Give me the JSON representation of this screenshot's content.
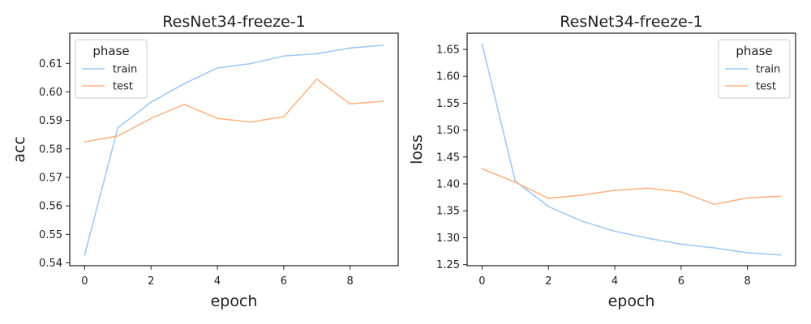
{
  "chart_data": [
    {
      "type": "line",
      "title": "ResNet34-freeze-1",
      "xlabel": "epoch",
      "ylabel": "acc",
      "x": [
        0,
        1,
        2,
        3,
        4,
        5,
        6,
        7,
        8,
        9
      ],
      "xlim": [
        -0.45,
        9.45
      ],
      "ylim": [
        0.539,
        0.6206
      ],
      "xticks": [
        0,
        2,
        4,
        6,
        8
      ],
      "yticks": [
        0.54,
        0.55,
        0.56,
        0.57,
        0.58,
        0.59,
        0.6,
        0.61
      ],
      "ytick_labels": [
        "0.54",
        "0.55",
        "0.56",
        "0.57",
        "0.58",
        "0.59",
        "0.60",
        "0.61"
      ],
      "legend": {
        "title": "phase",
        "placement": "top-left"
      },
      "series": [
        {
          "name": "train",
          "color": "#a1c9f4",
          "values": [
            0.5428,
            0.5874,
            0.5964,
            0.6029,
            0.6084,
            0.6099,
            0.6126,
            0.6134,
            0.6154,
            0.6164
          ]
        },
        {
          "name": "test",
          "color": "#ffb482",
          "values": [
            0.5825,
            0.5845,
            0.5907,
            0.5956,
            0.5907,
            0.5894,
            0.5913,
            0.6045,
            0.5958,
            0.5967
          ]
        }
      ]
    },
    {
      "type": "line",
      "title": "ResNet34-freeze-1",
      "xlabel": "epoch",
      "ylabel": "loss",
      "x": [
        0,
        1,
        2,
        3,
        4,
        5,
        6,
        7,
        8,
        9
      ],
      "xlim": [
        -0.45,
        9.45
      ],
      "ylim": [
        1.248,
        1.68
      ],
      "xticks": [
        0,
        2,
        4,
        6,
        8
      ],
      "yticks": [
        1.25,
        1.3,
        1.35,
        1.4,
        1.45,
        1.5,
        1.55,
        1.6,
        1.65
      ],
      "ytick_labels": [
        "1.25",
        "1.30",
        "1.35",
        "1.40",
        "1.45",
        "1.50",
        "1.55",
        "1.60",
        "1.65"
      ],
      "legend": {
        "title": "phase",
        "placement": "top-right"
      },
      "series": [
        {
          "name": "train",
          "color": "#a1c9f4",
          "values": [
            1.66,
            1.405,
            1.358,
            1.331,
            1.312,
            1.299,
            1.288,
            1.281,
            1.272,
            1.268
          ]
        },
        {
          "name": "test",
          "color": "#ffb482",
          "values": [
            1.428,
            1.403,
            1.373,
            1.379,
            1.388,
            1.392,
            1.385,
            1.362,
            1.374,
            1.377
          ]
        }
      ]
    }
  ]
}
